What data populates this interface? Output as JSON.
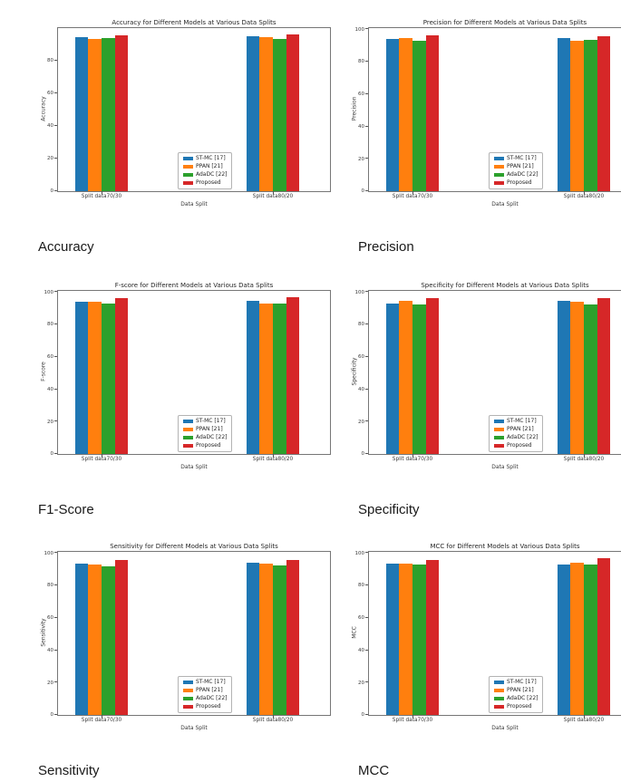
{
  "page": {
    "background": "#ffffff"
  },
  "palette": {
    "st_mc": "#1f77b4",
    "ppan": "#ff7f0e",
    "adadc": "#2ca02c",
    "proposed": "#d62728",
    "axis_frame": "#767676",
    "caption_text": "#1a1a1a"
  },
  "chart_data": [
    {
      "type": "bar",
      "title": "Accuracy for Different Models at Various Data Splits",
      "xlabel": "Data Split",
      "ylabel": "Accuracy",
      "caption": "Accuracy",
      "categories": [
        "Split data70/30",
        "Split data80/20"
      ],
      "series": [
        {
          "name": "ST-MC [17]",
          "color": "#1f77b4",
          "values": [
            94.3,
            94.8
          ]
        },
        {
          "name": "PPAN [21]",
          "color": "#ff7f0e",
          "values": [
            93.0,
            94.5
          ]
        },
        {
          "name": "AdaDC [22]",
          "color": "#2ca02c",
          "values": [
            93.6,
            93.4
          ]
        },
        {
          "name": "Proposed",
          "color": "#d62728",
          "values": [
            95.6,
            95.8
          ]
        }
      ],
      "yticks": [
        0,
        20,
        40,
        60,
        80
      ],
      "ylim": [
        0,
        99.8
      ],
      "grid": false,
      "legend_position": "lower center"
    },
    {
      "type": "bar",
      "title": "Precision for Different Models at Various Data Splits",
      "xlabel": "Data Split",
      "ylabel": "Precision",
      "caption": "Precision",
      "categories": [
        "Split data70/30",
        "Split data80/20"
      ],
      "series": [
        {
          "name": "ST-MC [17]",
          "color": "#1f77b4",
          "values": [
            94.0,
            94.4
          ]
        },
        {
          "name": "PPAN [21]",
          "color": "#ff7f0e",
          "values": [
            94.6,
            93.1
          ]
        },
        {
          "name": "AdaDC [22]",
          "color": "#2ca02c",
          "values": [
            92.7,
            93.3
          ]
        },
        {
          "name": "Proposed",
          "color": "#d62728",
          "values": [
            96.3,
            95.5
          ]
        }
      ],
      "yticks": [
        0,
        20,
        40,
        60,
        80,
        100
      ],
      "ylim": [
        0,
        100.8
      ],
      "grid": false,
      "legend_position": "lower center"
    },
    {
      "type": "bar",
      "title": "F-score for Different Models at Various Data Splits",
      "xlabel": "Data Split",
      "ylabel": "F-score",
      "caption": "F1-Score",
      "categories": [
        "Split data70/30",
        "Split data80/20"
      ],
      "series": [
        {
          "name": "ST-MC [17]",
          "color": "#1f77b4",
          "values": [
            94.2,
            94.4
          ]
        },
        {
          "name": "PPAN [21]",
          "color": "#ff7f0e",
          "values": [
            94.2,
            92.9
          ]
        },
        {
          "name": "AdaDC [22]",
          "color": "#2ca02c",
          "values": [
            92.9,
            93.0
          ]
        },
        {
          "name": "Proposed",
          "color": "#d62728",
          "values": [
            96.1,
            96.8
          ]
        }
      ],
      "yticks": [
        0,
        20,
        40,
        60,
        80,
        100
      ],
      "ylim": [
        0,
        100.8
      ],
      "grid": false,
      "legend_position": "lower center"
    },
    {
      "type": "bar",
      "title": "Specificity for Different Models at Various Data Splits",
      "xlabel": "Data Split",
      "ylabel": "Specificity",
      "caption": "Specificity",
      "categories": [
        "Split data70/30",
        "Split data80/20"
      ],
      "series": [
        {
          "name": "ST-MC [17]",
          "color": "#1f77b4",
          "values": [
            93.2,
            94.5
          ]
        },
        {
          "name": "PPAN [21]",
          "color": "#ff7f0e",
          "values": [
            94.9,
            94.2
          ]
        },
        {
          "name": "AdaDC [22]",
          "color": "#2ca02c",
          "values": [
            92.6,
            92.6
          ]
        },
        {
          "name": "Proposed",
          "color": "#d62728",
          "values": [
            96.2,
            96.6
          ]
        }
      ],
      "yticks": [
        0,
        20,
        40,
        60,
        80,
        100
      ],
      "ylim": [
        0,
        100.8
      ],
      "grid": false,
      "legend_position": "lower center"
    },
    {
      "type": "bar",
      "title": "Sensitivity for Different Models at Various Data Splits",
      "xlabel": "Data Split",
      "ylabel": "Sensitivity",
      "caption": "Sensitivity",
      "categories": [
        "Split data70/30",
        "Split data80/20"
      ],
      "series": [
        {
          "name": "ST-MC [17]",
          "color": "#1f77b4",
          "values": [
            93.5,
            94.3
          ]
        },
        {
          "name": "PPAN [21]",
          "color": "#ff7f0e",
          "values": [
            93.0,
            93.8
          ]
        },
        {
          "name": "AdaDC [22]",
          "color": "#2ca02c",
          "values": [
            92.0,
            92.5
          ]
        },
        {
          "name": "Proposed",
          "color": "#d62728",
          "values": [
            95.7,
            95.8
          ]
        }
      ],
      "yticks": [
        0,
        20,
        40,
        60,
        80,
        100
      ],
      "ylim": [
        0,
        100.8
      ],
      "grid": false,
      "legend_position": "lower center"
    },
    {
      "type": "bar",
      "title": "MCC for Different Models at Various Data Splits",
      "xlabel": "Data Split",
      "ylabel": "MCC",
      "caption": "MCC",
      "categories": [
        "Split data70/30",
        "Split data80/20"
      ],
      "series": [
        {
          "name": "ST-MC [17]",
          "color": "#1f77b4",
          "values": [
            93.8,
            93.2
          ]
        },
        {
          "name": "PPAN [21]",
          "color": "#ff7f0e",
          "values": [
            93.8,
            94.1
          ]
        },
        {
          "name": "AdaDC [22]",
          "color": "#2ca02c",
          "values": [
            93.0,
            93.0
          ]
        },
        {
          "name": "Proposed",
          "color": "#d62728",
          "values": [
            95.8,
            96.8
          ]
        }
      ],
      "yticks": [
        0,
        20,
        40,
        60,
        80,
        100
      ],
      "ylim": [
        0,
        100.8
      ],
      "grid": false,
      "legend_position": "lower center"
    }
  ]
}
